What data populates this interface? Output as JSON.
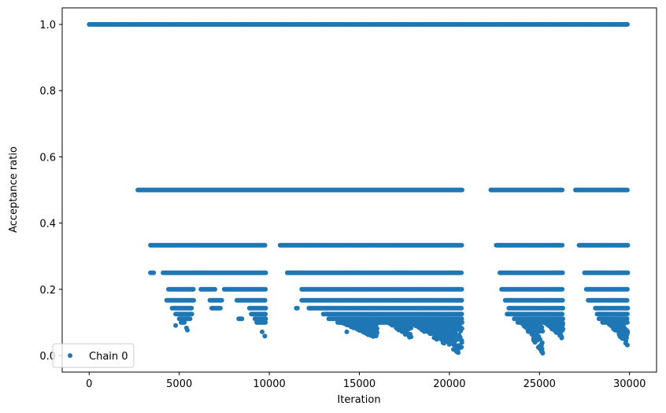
{
  "chart_data": {
    "type": "scatter",
    "xlabel": "Iteration",
    "ylabel": "Acceptance ratio",
    "xlim": [
      -1500,
      31500
    ],
    "ylim": [
      -0.05,
      1.05
    ],
    "xticks": [
      0,
      5000,
      10000,
      15000,
      20000,
      25000,
      30000
    ],
    "yticks": [
      0.0,
      0.2,
      0.4,
      0.6,
      0.8,
      1.0
    ],
    "xtick_labels": [
      "0",
      "5000",
      "10000",
      "15000",
      "20000",
      "25000",
      "30000"
    ],
    "ytick_labels": [
      "0.0",
      "0.2",
      "0.4",
      "0.6",
      "0.8",
      "1.0"
    ],
    "grid": false,
    "legend_position": "lower-left",
    "series": [
      {
        "name": "Chain 0",
        "color": "#1f77b4",
        "marker": "circle",
        "bands": [
          {
            "y": 1.0,
            "ranges": [
              [
                0,
                29900
              ]
            ]
          },
          {
            "y": 0.5,
            "ranges": [
              [
                2700,
                20700
              ],
              [
                22300,
                26300
              ],
              [
                27000,
                29900
              ]
            ]
          },
          {
            "y": 0.3333,
            "ranges": [
              [
                3400,
                9800
              ],
              [
                10600,
                20700
              ],
              [
                22600,
                26300
              ],
              [
                27200,
                29900
              ]
            ]
          },
          {
            "y": 0.25,
            "ranges": [
              [
                3400,
                3600
              ],
              [
                4100,
                9800
              ],
              [
                11000,
                20700
              ],
              [
                22800,
                26300
              ],
              [
                27500,
                29900
              ]
            ]
          },
          {
            "y": 0.2,
            "ranges": [
              [
                4400,
                5800
              ],
              [
                6200,
                7000
              ],
              [
                7500,
                9800
              ],
              [
                11800,
                20700
              ],
              [
                22900,
                26300
              ],
              [
                27600,
                29900
              ]
            ]
          },
          {
            "y": 0.1667,
            "ranges": [
              [
                4300,
                5800
              ],
              [
                6700,
                7400
              ],
              [
                8200,
                9800
              ],
              [
                11800,
                20700
              ],
              [
                23100,
                26300
              ],
              [
                27700,
                29900
              ]
            ]
          },
          {
            "y": 0.1429,
            "ranges": [
              [
                4600,
                5700
              ],
              [
                6800,
                7300
              ],
              [
                8900,
                9800
              ],
              [
                11500,
                11600
              ],
              [
                12200,
                20700
              ],
              [
                23300,
                26300
              ],
              [
                28100,
                29900
              ]
            ]
          },
          {
            "y": 0.125,
            "ranges": [
              [
                4800,
                5700
              ],
              [
                9000,
                9800
              ],
              [
                13000,
                20700
              ],
              [
                23200,
                26300
              ],
              [
                28200,
                29900
              ]
            ]
          },
          {
            "y": 0.1111,
            "ranges": [
              [
                5000,
                5600
              ],
              [
                8300,
                8500
              ],
              [
                9200,
                9800
              ],
              [
                13300,
                20700
              ],
              [
                23600,
                26300
              ],
              [
                28300,
                29900
              ]
            ]
          },
          {
            "y": 0.1,
            "ranges": [
              [
                5100,
                5300
              ],
              [
                9300,
                9800
              ],
              [
                13800,
                20700
              ],
              [
                23800,
                26300
              ],
              [
                28500,
                29900
              ]
            ]
          }
        ],
        "clusters": [
          {
            "x": [
              14000,
              16000
            ],
            "ymin": 0.05,
            "ymax": 0.1
          },
          {
            "x": [
              16600,
              17900
            ],
            "ymin": 0.05,
            "ymax": 0.1
          },
          {
            "x": [
              17800,
              20700
            ],
            "ymin": 0.0,
            "ymax": 0.1
          },
          {
            "x": [
              24000,
              25200
            ],
            "ymin": 0.0,
            "ymax": 0.1
          },
          {
            "x": [
              25300,
              26300
            ],
            "ymin": 0.05,
            "ymax": 0.1
          },
          {
            "x": [
              28800,
              29900
            ],
            "ymin": 0.03,
            "ymax": 0.1
          }
        ],
        "isolated_points": [
          {
            "x": 4800,
            "y": 0.0909
          },
          {
            "x": 5400,
            "y": 0.0833
          },
          {
            "x": 5450,
            "y": 0.0769
          },
          {
            "x": 9600,
            "y": 0.0714
          },
          {
            "x": 9750,
            "y": 0.0588
          },
          {
            "x": 14300,
            "y": 0.0714
          }
        ]
      }
    ]
  }
}
